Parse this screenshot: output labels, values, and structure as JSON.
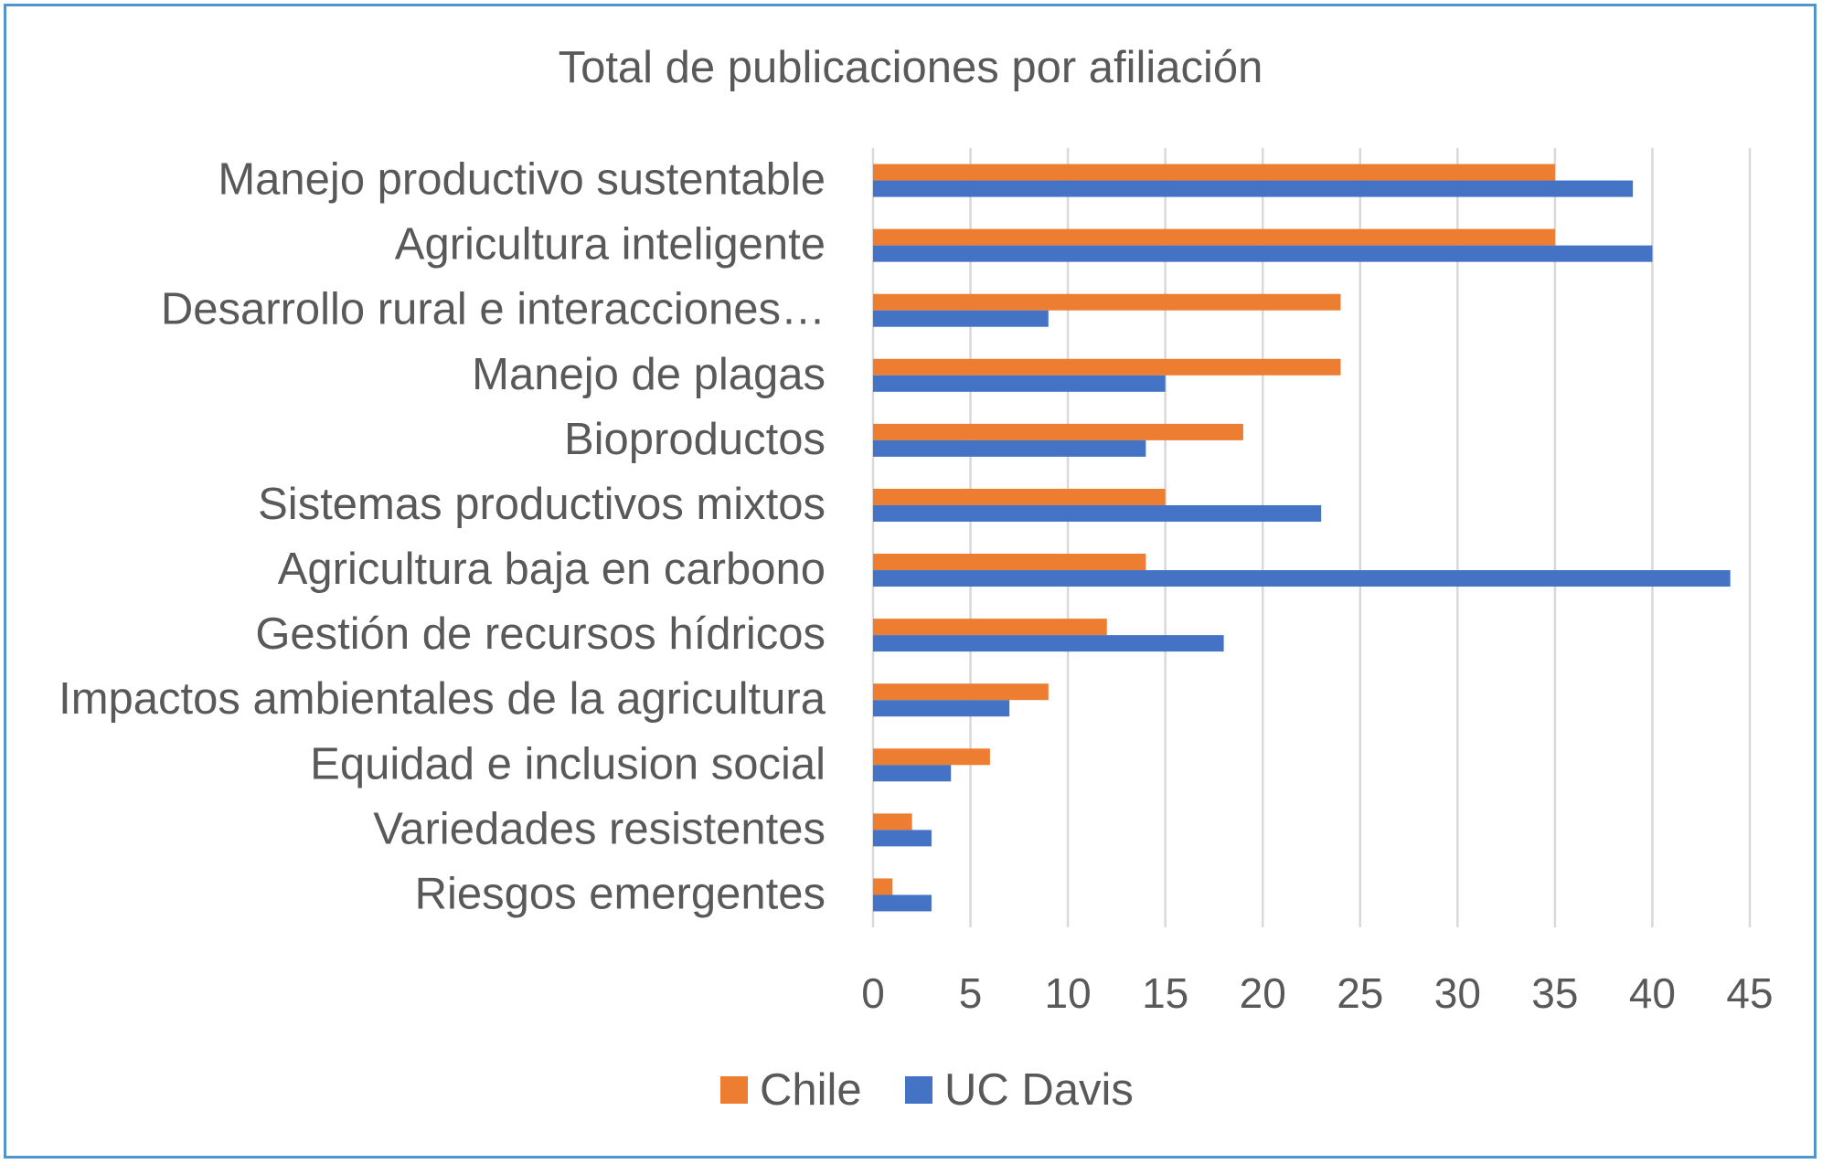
{
  "chart_data": {
    "type": "bar",
    "orientation": "horizontal",
    "title": "Total de publicaciones por afiliación",
    "categories": [
      "Manejo productivo sustentable",
      "Agricultura inteligente",
      "Desarrollo rural e interacciones…",
      "Manejo de plagas",
      "Bioproductos",
      "Sistemas productivos mixtos",
      "Agricultura baja en carbono",
      "Gestión de recursos hídricos",
      "Impactos ambientales de la agricultura",
      "Equidad e inclusion social",
      "Variedades resistentes",
      "Riesgos emergentes"
    ],
    "series": [
      {
        "name": "Chile",
        "color": "#ed7d31",
        "values": [
          35,
          35,
          24,
          24,
          19,
          15,
          14,
          12,
          9,
          6,
          2,
          1
        ]
      },
      {
        "name": "UC Davis",
        "color": "#4472c4",
        "values": [
          39,
          40,
          9,
          15,
          14,
          23,
          44,
          18,
          7,
          4,
          3,
          3
        ]
      }
    ],
    "xlim": [
      0,
      45
    ],
    "x_ticks": [
      0,
      5,
      10,
      15,
      20,
      25,
      30,
      35,
      40,
      45
    ],
    "grid": "vertical",
    "legend": "bottom",
    "xlabel": "",
    "ylabel": ""
  },
  "colors": {
    "frame_border": "#4f95cc",
    "gridline": "#d9d9d9",
    "text": "#595959"
  }
}
